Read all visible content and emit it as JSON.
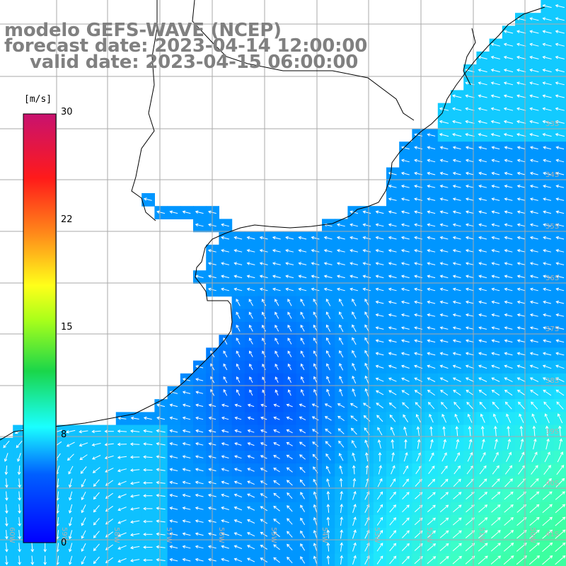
{
  "header": {
    "model": "modelo GEFS-WAVE (NCEP)",
    "forecast": "forecast date: 2023-04-14 12:00:00",
    "valid": "valid date: 2023-04-15 06:00:00"
  },
  "colorbar": {
    "unit": "[m/s]",
    "ticks": [
      "30",
      "22",
      "15",
      "8",
      "0"
    ],
    "colors": [
      "#c8126f",
      "#ff1a1a",
      "#ff9a1a",
      "#ffff1a",
      "#1ae61a",
      "#1affff",
      "#00b4ff",
      "#0050ff",
      "#0000ff"
    ]
  },
  "map": {
    "lat_labels": [
      "33S",
      "34S",
      "35S",
      "36S",
      "37S",
      "38S",
      "39S",
      "40S",
      "41S"
    ],
    "lon_labels": [
      "60W",
      "59W",
      "58W",
      "57W",
      "56W",
      "55W",
      "54W",
      "53W",
      "52W",
      "51W",
      "50W"
    ],
    "land_color": "#ffffff",
    "coast_color": "#000000",
    "grid_color": "#aaaaaa"
  },
  "colors": {
    "slow": "#0a1ef0",
    "mid": "#1a6cff",
    "fast": "#30f0c0"
  }
}
